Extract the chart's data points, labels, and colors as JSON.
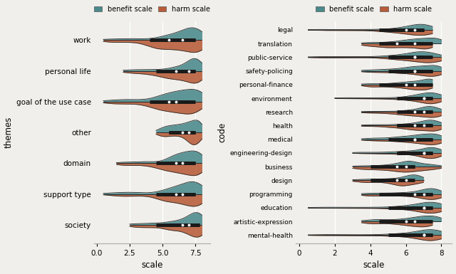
{
  "benefit_color": "#4a8a8c",
  "harm_color": "#b85c38",
  "background_color": "#f0efeb",
  "benefit_label": "benefit scale",
  "harm_label": "harm scale",
  "left_ylabel": "themes",
  "right_ylabel": "code",
  "xlabel": "scale",
  "left_categories": [
    "work",
    "personal life",
    "goal of the use case",
    "other",
    "domain",
    "support type",
    "society"
  ],
  "right_categories": [
    "legal",
    "translation",
    "public-service",
    "safety-policing",
    "personal-finance",
    "environment",
    "research",
    "health",
    "medical",
    "engineering-design",
    "business",
    "design",
    "programming",
    "education",
    "artistic-expression",
    "mental-health"
  ],
  "left_data": {
    "benefit": {
      "work": {
        "min": 0.5,
        "q1": 5.0,
        "median": 6.5,
        "q3": 7.5,
        "max": 8.0
      },
      "personal life": {
        "min": 2.0,
        "q1": 5.5,
        "median": 7.0,
        "q3": 7.5,
        "max": 8.0
      },
      "goal of the use case": {
        "min": 0.5,
        "q1": 4.5,
        "median": 6.0,
        "q3": 7.5,
        "max": 8.0
      },
      "other": {
        "min": 4.5,
        "q1": 5.5,
        "median": 6.5,
        "q3": 7.5,
        "max": 8.0
      },
      "domain": {
        "min": 1.5,
        "q1": 5.5,
        "median": 6.5,
        "q3": 7.5,
        "max": 8.0
      },
      "support type": {
        "min": 0.5,
        "q1": 5.0,
        "median": 6.5,
        "q3": 7.5,
        "max": 8.0
      },
      "society": {
        "min": 2.5,
        "q1": 5.5,
        "median": 7.0,
        "q3": 7.8,
        "max": 8.0
      }
    },
    "harm": {
      "work": {
        "min": 0.5,
        "q1": 4.0,
        "median": 5.5,
        "q3": 7.5,
        "max": 8.0
      },
      "personal life": {
        "min": 2.0,
        "q1": 4.5,
        "median": 6.0,
        "q3": 7.5,
        "max": 8.0
      },
      "goal of the use case": {
        "min": 0.5,
        "q1": 4.0,
        "median": 5.5,
        "q3": 7.0,
        "max": 8.0
      },
      "other": {
        "min": 4.5,
        "q1": 5.5,
        "median": 7.0,
        "q3": 7.5,
        "max": 8.0
      },
      "domain": {
        "min": 1.5,
        "q1": 4.5,
        "median": 6.0,
        "q3": 7.5,
        "max": 8.0
      },
      "support type": {
        "min": 0.5,
        "q1": 4.5,
        "median": 6.0,
        "q3": 7.5,
        "max": 8.0
      },
      "society": {
        "min": 2.5,
        "q1": 4.5,
        "median": 6.5,
        "q3": 7.8,
        "max": 8.0
      }
    }
  },
  "right_data": {
    "benefit": {
      "legal": {
        "min": 0.5,
        "q1": 5.5,
        "median": 6.5,
        "q3": 7.0,
        "max": 7.5
      },
      "translation": {
        "min": 3.5,
        "q1": 5.5,
        "median": 6.5,
        "q3": 7.5,
        "max": 8.0
      },
      "public-service": {
        "min": 0.5,
        "q1": 5.0,
        "median": 6.5,
        "q3": 7.0,
        "max": 8.0
      },
      "safety-policing": {
        "min": 3.5,
        "q1": 5.5,
        "median": 6.5,
        "q3": 7.5,
        "max": 8.0
      },
      "personal-finance": {
        "min": 3.5,
        "q1": 5.5,
        "median": 6.5,
        "q3": 7.5,
        "max": 7.5
      },
      "environment": {
        "min": 2.0,
        "q1": 6.0,
        "median": 7.0,
        "q3": 7.5,
        "max": 8.0
      },
      "research": {
        "min": 3.5,
        "q1": 6.0,
        "median": 7.0,
        "q3": 7.5,
        "max": 8.0
      },
      "health": {
        "min": 3.5,
        "q1": 5.5,
        "median": 7.0,
        "q3": 7.5,
        "max": 8.0
      },
      "medical": {
        "min": 3.5,
        "q1": 5.5,
        "median": 6.5,
        "q3": 7.5,
        "max": 8.0
      },
      "engineering-design": {
        "min": 3.0,
        "q1": 5.5,
        "median": 7.0,
        "q3": 7.5,
        "max": 8.0
      },
      "business": {
        "min": 3.0,
        "q1": 5.0,
        "median": 6.0,
        "q3": 6.5,
        "max": 8.0
      },
      "design": {
        "min": 3.0,
        "q1": 4.5,
        "median": 6.0,
        "q3": 6.5,
        "max": 7.0
      },
      "programming": {
        "min": 3.5,
        "q1": 5.5,
        "median": 7.0,
        "q3": 7.5,
        "max": 8.0
      },
      "education": {
        "min": 0.5,
        "q1": 5.5,
        "median": 7.0,
        "q3": 7.5,
        "max": 8.0
      },
      "artistic-expression": {
        "min": 3.5,
        "q1": 5.0,
        "median": 6.5,
        "q3": 7.5,
        "max": 8.0
      },
      "mental-health": {
        "min": 0.5,
        "q1": 5.5,
        "median": 7.0,
        "q3": 7.5,
        "max": 8.0
      }
    },
    "harm": {
      "legal": {
        "min": 0.5,
        "q1": 4.5,
        "median": 6.0,
        "q3": 7.0,
        "max": 7.5
      },
      "translation": {
        "min": 3.5,
        "q1": 4.5,
        "median": 5.5,
        "q3": 7.0,
        "max": 7.5
      },
      "public-service": {
        "min": 0.5,
        "q1": 5.0,
        "median": 6.5,
        "q3": 7.5,
        "max": 8.0
      },
      "safety-policing": {
        "min": 3.5,
        "q1": 5.0,
        "median": 6.5,
        "q3": 7.5,
        "max": 8.0
      },
      "personal-finance": {
        "min": 3.5,
        "q1": 4.5,
        "median": 6.0,
        "q3": 7.0,
        "max": 7.5
      },
      "environment": {
        "min": 2.0,
        "q1": 5.5,
        "median": 7.0,
        "q3": 7.5,
        "max": 8.0
      },
      "research": {
        "min": 3.5,
        "q1": 5.5,
        "median": 6.5,
        "q3": 7.5,
        "max": 8.0
      },
      "health": {
        "min": 3.5,
        "q1": 5.5,
        "median": 6.5,
        "q3": 7.5,
        "max": 8.0
      },
      "medical": {
        "min": 3.5,
        "q1": 5.0,
        "median": 6.5,
        "q3": 7.5,
        "max": 8.0
      },
      "engineering-design": {
        "min": 3.0,
        "q1": 5.5,
        "median": 7.0,
        "q3": 7.5,
        "max": 8.0
      },
      "business": {
        "min": 3.0,
        "q1": 4.0,
        "median": 5.5,
        "q3": 6.5,
        "max": 8.0
      },
      "design": {
        "min": 3.0,
        "q1": 4.0,
        "median": 5.5,
        "q3": 6.0,
        "max": 7.0
      },
      "programming": {
        "min": 3.5,
        "q1": 4.5,
        "median": 6.5,
        "q3": 7.5,
        "max": 8.0
      },
      "education": {
        "min": 0.5,
        "q1": 5.0,
        "median": 7.0,
        "q3": 7.5,
        "max": 8.0
      },
      "artistic-expression": {
        "min": 3.5,
        "q1": 4.5,
        "median": 6.0,
        "q3": 7.0,
        "max": 7.5
      },
      "mental-health": {
        "min": 0.5,
        "q1": 5.0,
        "median": 7.0,
        "q3": 7.5,
        "max": 8.0
      }
    }
  }
}
